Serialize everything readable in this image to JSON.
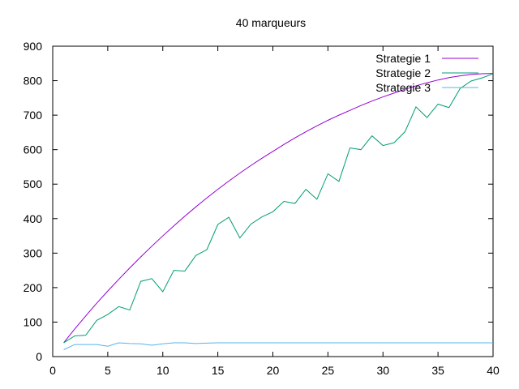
{
  "chart_data": {
    "type": "line",
    "title": "40 marqueurs",
    "xlabel": "",
    "ylabel": "",
    "xlim": [
      0,
      40
    ],
    "ylim": [
      0,
      900
    ],
    "xticks": [
      0,
      5,
      10,
      15,
      20,
      25,
      30,
      35,
      40
    ],
    "yticks": [
      0,
      100,
      200,
      300,
      400,
      500,
      600,
      700,
      800,
      900
    ],
    "grid": false,
    "legend_position": "top-right",
    "x": [
      1,
      2,
      3,
      4,
      5,
      6,
      7,
      8,
      9,
      10,
      11,
      12,
      13,
      14,
      15,
      16,
      17,
      18,
      19,
      20,
      21,
      22,
      23,
      24,
      25,
      26,
      27,
      28,
      29,
      30,
      31,
      32,
      33,
      34,
      35,
      36,
      37,
      38,
      39,
      40
    ],
    "series": [
      {
        "name": "Strategie 1",
        "color": "#9400d3",
        "values": [
          40,
          80,
          118,
          155,
          190,
          224,
          257,
          289,
          320,
          350,
          379,
          407,
          434,
          460,
          485,
          509,
          532,
          554,
          575,
          595,
          615,
          634,
          652,
          669,
          685,
          700,
          714,
          728,
          741,
          753,
          764,
          775,
          785,
          794,
          802,
          809,
          814,
          818,
          820,
          821
        ]
      },
      {
        "name": "Strategie 2",
        "color": "#009e73",
        "values": [
          40,
          60,
          62,
          105,
          122,
          145,
          135,
          218,
          226,
          188,
          250,
          248,
          293,
          310,
          383,
          404,
          344,
          384,
          405,
          420,
          450,
          444,
          485,
          456,
          530,
          508,
          605,
          600,
          640,
          612,
          620,
          652,
          724,
          693,
          732,
          722,
          777,
          799,
          808,
          820
        ]
      },
      {
        "name": "Strategie 3",
        "color": "#56b4e9",
        "values": [
          20,
          35,
          35,
          35,
          30,
          40,
          38,
          37,
          33,
          37,
          40,
          40,
          38,
          39,
          40,
          40,
          40,
          40,
          40,
          40,
          40,
          40,
          40,
          40,
          40,
          40,
          40,
          40,
          40,
          40,
          40,
          40,
          40,
          40,
          40,
          40,
          40,
          40,
          40,
          40
        ]
      }
    ]
  }
}
